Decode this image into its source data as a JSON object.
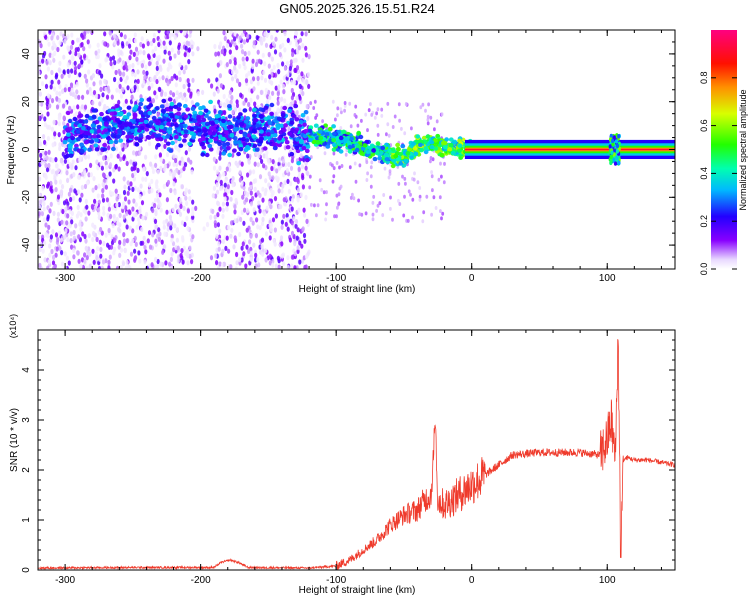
{
  "title": "GN05.2025.326.15.51.R24",
  "colors": {
    "snr_line": "#ef3b2c",
    "frame": "#000000"
  },
  "colorbar": {
    "label": "Normalized spectral amplitude",
    "ticks": [
      "0.0",
      "0.2",
      "0.4",
      "0.6",
      "0.8"
    ],
    "tick_values": [
      0.0,
      0.2,
      0.4,
      0.6,
      0.8
    ],
    "range": [
      0,
      1
    ],
    "colormap": "rainbow (white → violet → blue → cyan → green → yellow → red → magenta)"
  },
  "chart_data": [
    {
      "type": "heatmap",
      "name": "spectrogram",
      "xlabel": "Height of straight line (km)",
      "ylabel": "Frequency (Hz)",
      "xlim": [
        -320,
        150
      ],
      "ylim": [
        -50,
        50
      ],
      "x_ticks": [
        -300,
        -200,
        -100,
        0,
        100
      ],
      "y_ticks": [
        -40,
        -20,
        0,
        20,
        40
      ],
      "ridge": {
        "x": [
          -290,
          -260,
          -230,
          -200,
          -170,
          -140,
          -120,
          -100,
          -80,
          -70,
          -60,
          -50,
          -40,
          -30,
          -20,
          -10,
          0,
          50,
          100,
          105,
          110,
          150
        ],
        "y": [
          6,
          10,
          11,
          9,
          8,
          8,
          6,
          5,
          1,
          -1,
          -2,
          -4,
          2,
          3,
          1,
          1,
          0,
          0,
          0,
          0,
          0,
          0
        ]
      }
    },
    {
      "type": "line",
      "name": "snr",
      "xlabel": "Height of straight line (km)",
      "ylabel": "SNR (10 * v/v)",
      "yscale_label": "(x10⁴)",
      "xlim": [
        -320,
        150
      ],
      "ylim": [
        0,
        4.8
      ],
      "x_ticks": [
        -300,
        -200,
        -100,
        0,
        100
      ],
      "y_ticks": [
        0,
        1,
        2,
        3,
        4
      ],
      "x": [
        -320,
        -250,
        -190,
        -185,
        -178,
        -172,
        -165,
        -120,
        -100,
        -90,
        -80,
        -70,
        -60,
        -50,
        -40,
        -35,
        -30,
        -27,
        -25,
        -20,
        -10,
        0,
        10,
        20,
        30,
        50,
        80,
        95,
        100,
        103,
        106,
        108,
        110,
        112,
        115,
        120,
        130,
        140,
        150
      ],
      "y": [
        0.04,
        0.05,
        0.05,
        0.15,
        0.2,
        0.15,
        0.05,
        0.04,
        0.08,
        0.2,
        0.4,
        0.6,
        0.9,
        1.1,
        1.2,
        1.4,
        1.5,
        2.8,
        1.4,
        1.3,
        1.5,
        1.7,
        1.9,
        2.1,
        2.3,
        2.35,
        2.35,
        2.3,
        2.6,
        3.0,
        2.2,
        4.7,
        0.3,
        2.2,
        2.25,
        2.2,
        2.2,
        2.15,
        2.1
      ]
    }
  ]
}
